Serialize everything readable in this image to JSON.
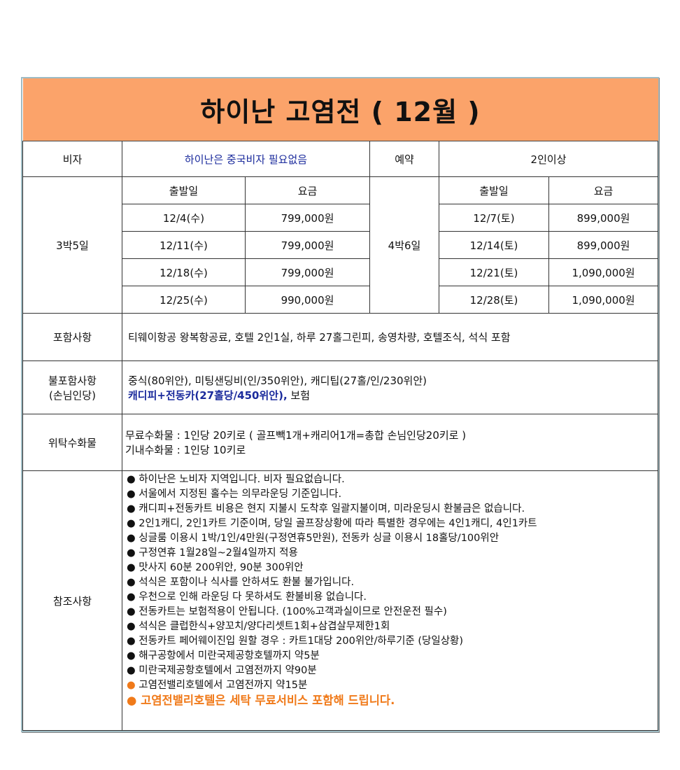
{
  "title": "하이난 고염전 ( 12월 )",
  "visa": {
    "label": "비자",
    "value": "하이난은 중국비자 필요없음"
  },
  "reservation": {
    "label": "예약",
    "value": "2인이상"
  },
  "plan_a": {
    "label": "3박5일",
    "col_date": "출발일",
    "col_price": "요금",
    "rows": [
      {
        "date": "12/4(수)",
        "price": "799,000원"
      },
      {
        "date": "12/11(수)",
        "price": "799,000원"
      },
      {
        "date": "12/18(수)",
        "price": "799,000원"
      },
      {
        "date": "12/25(수)",
        "price": "990,000원"
      }
    ]
  },
  "plan_b": {
    "label": "4박6일",
    "col_date": "출발일",
    "col_price": "요금",
    "rows": [
      {
        "date": "12/7(토)",
        "price": "899,000원"
      },
      {
        "date": "12/14(토)",
        "price": "899,000원"
      },
      {
        "date": "12/21(토)",
        "price": "1,090,000원"
      },
      {
        "date": "12/28(토)",
        "price": "1,090,000원"
      }
    ]
  },
  "included": {
    "label": "포함사항",
    "value": "티웨이항공 왕복항공료, 호텔 2인1실, 하루 27홀그린피, 송영차량, 호텔조식, 석식 포함"
  },
  "excluded": {
    "label1": "불포함사항",
    "label2": "(손님인당)",
    "line1": "중식(80위안), 미팅샌딩비(인/350위안), 캐디팁(27홀/인/230위안)",
    "line2_blue": "캐디피+전동카(27홀당/450위안),",
    "line2_rest": " 보험"
  },
  "baggage": {
    "label": "위탁수화물",
    "line1": "무료수화물 : 1인당 20키로 ( 골프빽1개+캐리어1개=총합 손님인당20키로 )",
    "line2": "기내수화물 : 1인당 10키로"
  },
  "notes": {
    "label": "참조사항",
    "bullet": "●",
    "items": [
      "하이난은 노비자 지역입니다. 비자 필요없습니다.",
      "서울에서 지정된 홀수는 의무라운딩 기준입니다.",
      "캐디피+전동카트 비용은 현지 지불시 도착후 일괄지불이며, 미라운딩시 환불금은 없습니다.",
      "2인1캐디, 2인1카트 기준이며, 당일 골프장상황에 따라 특별한 경우에는 4인1캐디, 4인1카트",
      "싱글룸 이용시 1박/1인/4만원(구정연휴5만원),  전동카 싱글 이용시 18홀당/100위안",
      "구정연휴 1월28일~2월4일까지 적용",
      "맛사지 60분 200위안, 90분 300위안",
      "석식은 포함이나 식사를 안하셔도 환불 불가입니다.",
      "우천으로 인해 라운딩 다 못하셔도 환불비용 없습니다.",
      "전동카트는 보험적용이 안됩니다. (100%고객과실이므로 안전운전 필수)",
      "석식은 클럽한식+양꼬치/양다리셋트1회+삼겹살무제한1회",
      "전동카트 페어웨이진입 원할 경우 : 카트1대당 200위안/하루기준 (당일상황)",
      "해구공항에서 미란국제공항호텔까지 약5분",
      "미란국제공항호텔에서 고염전까지 약90분"
    ],
    "orange_items": [
      "고염전밸리호텔에서 고염전까지 약15분",
      "고염전밸리호텔은 세탁 무료서비스 포함해 드립니다."
    ]
  },
  "colors": {
    "title_bg": "#fba36a",
    "blue_text": "#1a2a9c",
    "orange_text": "#f07a1a"
  }
}
